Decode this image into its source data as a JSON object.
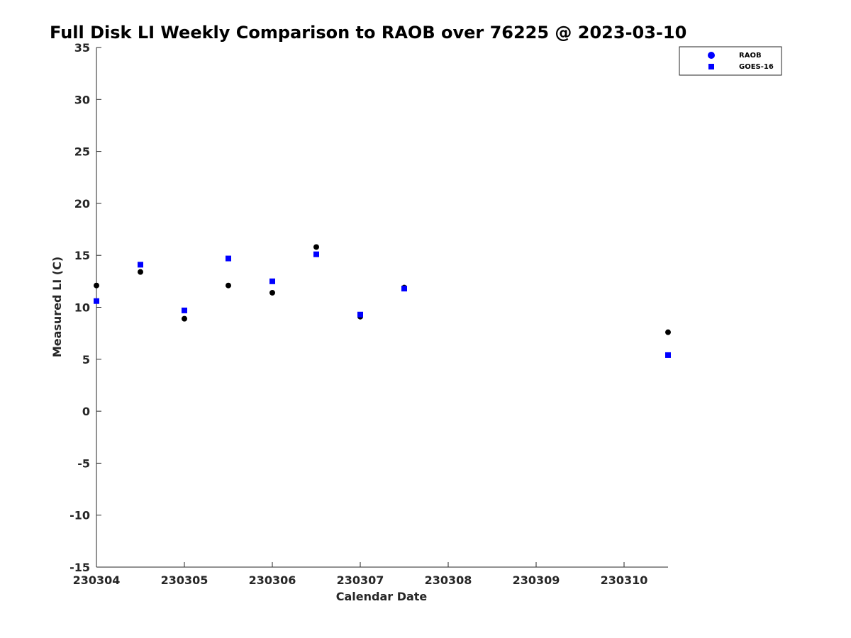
{
  "chart_data": {
    "type": "scatter",
    "title": "Full Disk LI Weekly Comparison to RAOB over 76225 @ 2023-03-10",
    "xlabel": "Calendar Date",
    "ylabel": "Measured LI (C)",
    "xlim": [
      230304,
      230310.5
    ],
    "ylim": [
      -15,
      35
    ],
    "x_ticks": [
      230304,
      230305,
      230306,
      230307,
      230308,
      230309,
      230310
    ],
    "x_tick_labels": [
      "230304",
      "230305",
      "230306",
      "230307",
      "230308",
      "230309",
      "230310"
    ],
    "y_ticks": [
      -15,
      -10,
      -5,
      0,
      5,
      10,
      15,
      20,
      25,
      30,
      35
    ],
    "y_tick_labels": [
      "-15",
      "-10",
      "-5",
      "0",
      "5",
      "10",
      "15",
      "20",
      "25",
      "30",
      "35"
    ],
    "legend_position": "top-right",
    "grid": false,
    "series": [
      {
        "name": "RAOB",
        "marker": "circle",
        "color": "#000000",
        "legend_color": "#0000ff",
        "x": [
          230304,
          230304.5,
          230305,
          230305.5,
          230306,
          230306.5,
          230307,
          230307.5,
          230310.5
        ],
        "values": [
          12.1,
          13.4,
          8.9,
          12.1,
          11.4,
          15.8,
          9.1,
          11.9,
          7.6
        ]
      },
      {
        "name": "GOES-16",
        "marker": "square",
        "color": "#0000ff",
        "legend_color": "#0000ff",
        "x": [
          230304,
          230304.5,
          230305,
          230305.5,
          230306,
          230306.5,
          230307,
          230307.5,
          230310.5
        ],
        "values": [
          10.6,
          14.1,
          9.7,
          14.7,
          12.5,
          15.1,
          9.3,
          11.8,
          5.4
        ]
      }
    ]
  }
}
